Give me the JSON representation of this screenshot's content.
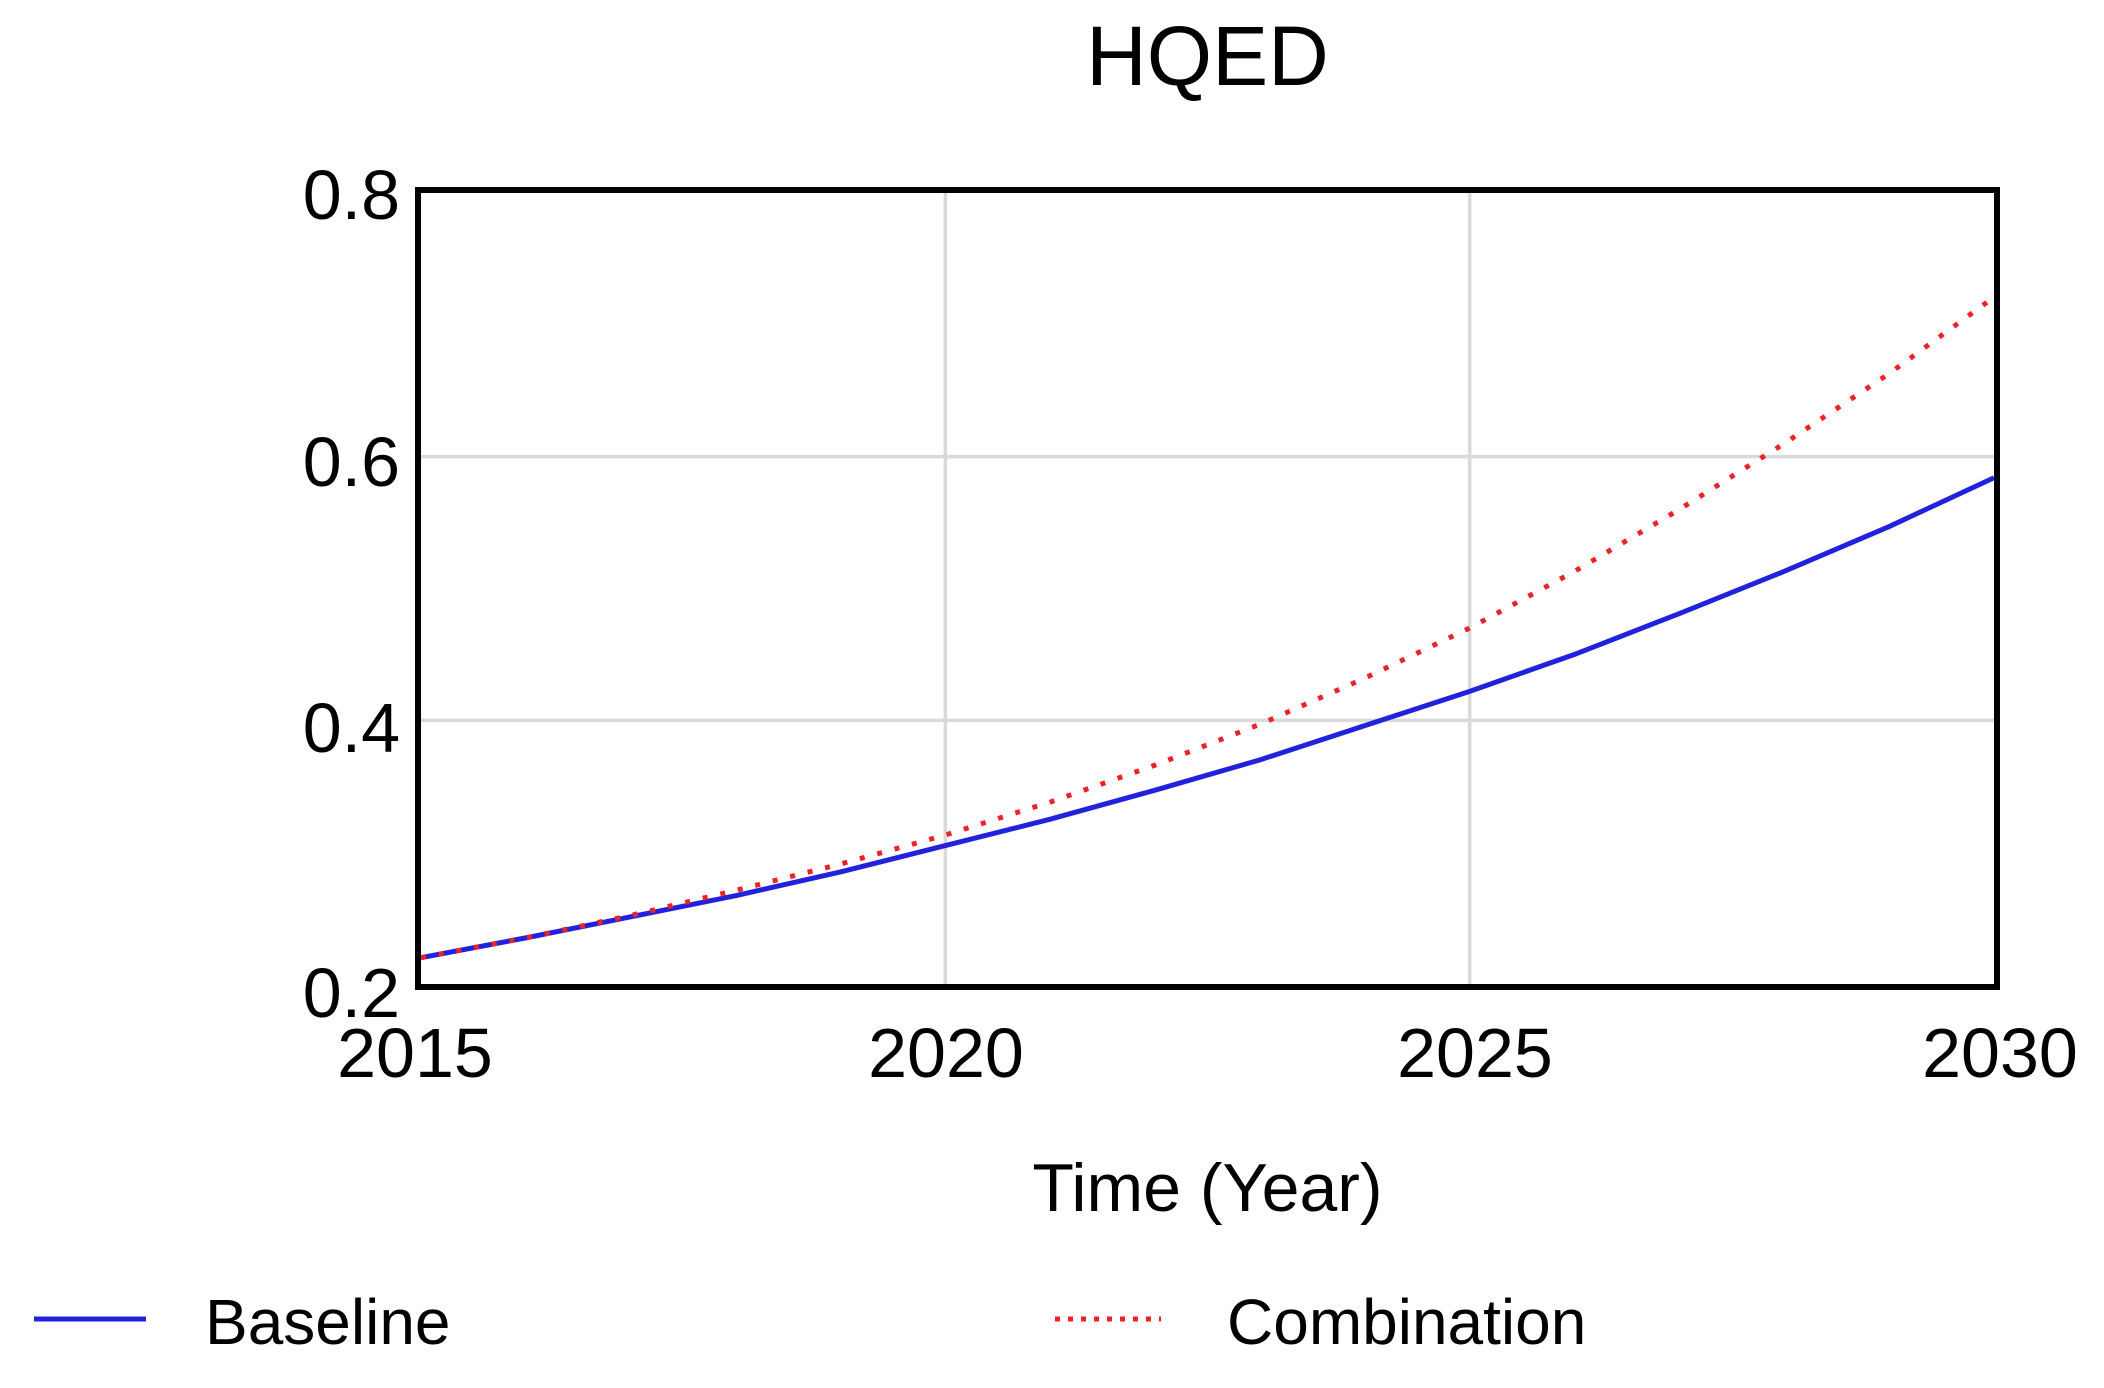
{
  "chart_data": {
    "type": "line",
    "title": "HQED",
    "xlabel": "Time (Year)",
    "ylabel": "",
    "x": [
      2015,
      2016,
      2017,
      2018,
      2019,
      2020,
      2021,
      2022,
      2023,
      2024,
      2025,
      2026,
      2027,
      2028,
      2029,
      2030
    ],
    "series": [
      {
        "name": "Baseline",
        "color": "#2222dd",
        "style": "solid",
        "values": [
          0.22,
          0.235,
          0.251,
          0.267,
          0.285,
          0.305,
          0.325,
          0.347,
          0.37,
          0.396,
          0.422,
          0.45,
          0.481,
          0.513,
          0.547,
          0.584
        ]
      },
      {
        "name": "Combination",
        "color": "#ee2222",
        "style": "dotted",
        "values": [
          0.22,
          0.235,
          0.252,
          0.271,
          0.291,
          0.313,
          0.338,
          0.366,
          0.397,
          0.432,
          0.47,
          0.513,
          0.56,
          0.61,
          0.663,
          0.721
        ]
      }
    ],
    "xlim": [
      2015,
      2030
    ],
    "ylim": [
      0.2,
      0.8
    ],
    "x_ticks": [
      2015,
      2020,
      2025,
      2030
    ],
    "y_ticks": [
      0.2,
      0.4,
      0.6,
      0.8
    ],
    "x_tick_labels": [
      "2015",
      "2020",
      "2025",
      "2030"
    ],
    "y_tick_labels": [
      "0.2",
      "0.4",
      "0.6",
      "0.8"
    ],
    "grid": true,
    "grid_color": "#d9d9d9",
    "border_color": "#000000",
    "background": "#ffffff",
    "legend_position": "bottom"
  }
}
